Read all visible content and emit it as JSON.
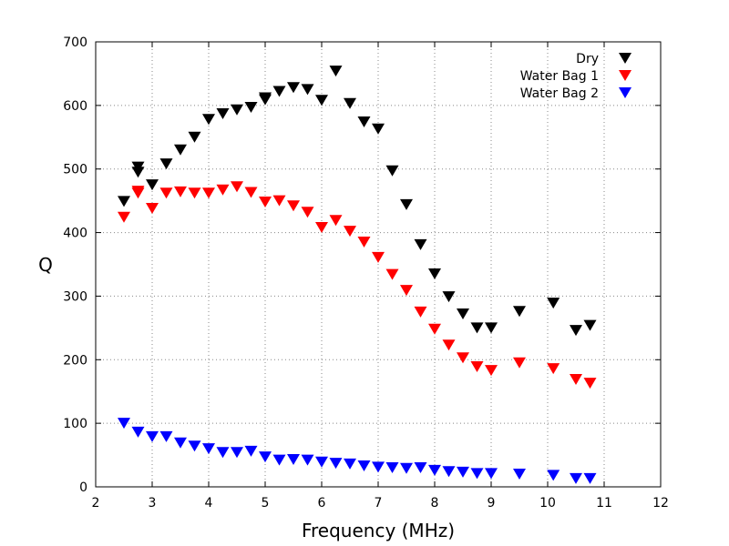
{
  "chart_data": {
    "type": "scatter",
    "title": "",
    "xlabel": "Frequency (MHz)",
    "ylabel": "Q",
    "xlim": [
      2,
      12
    ],
    "ylim": [
      0,
      700
    ],
    "xticks": [
      "2",
      "3",
      "4",
      "5",
      "6",
      "7",
      "8",
      "9",
      "10",
      "11",
      "12"
    ],
    "yticks": [
      "0",
      "100",
      "200",
      "300",
      "400",
      "500",
      "600",
      "700"
    ],
    "grid": true,
    "legend_position": "top-right",
    "marker": "down-triangle",
    "series": [
      {
        "name": "Dry",
        "color": "#000000",
        "x": [
          2.5,
          2.75,
          2.75,
          3.0,
          3.25,
          3.5,
          3.75,
          4.0,
          4.25,
          4.5,
          4.75,
          5.0,
          5.0,
          5.25,
          5.5,
          5.75,
          6.0,
          6.25,
          6.5,
          6.75,
          7.0,
          7.25,
          7.5,
          7.75,
          8.0,
          8.25,
          8.5,
          8.75,
          9.0,
          9.5,
          10.1,
          10.5,
          10.75
        ],
        "y": [
          449,
          503,
          495,
          475,
          508,
          530,
          550,
          578,
          587,
          593,
          597,
          609,
          612,
          622,
          628,
          625,
          608,
          654,
          603,
          574,
          563,
          497,
          444,
          381,
          335,
          299,
          272,
          250,
          250,
          276,
          289,
          246,
          254
        ]
      },
      {
        "name": "Water Bag 1",
        "color": "#ff0000",
        "x": [
          2.5,
          2.75,
          2.75,
          3.0,
          3.25,
          3.5,
          3.75,
          4.0,
          4.25,
          4.5,
          4.75,
          5.0,
          5.25,
          5.5,
          5.75,
          6.0,
          6.25,
          6.5,
          6.75,
          7.0,
          7.25,
          7.5,
          7.75,
          8.0,
          8.25,
          8.5,
          8.75,
          9.0,
          9.5,
          10.1,
          10.5,
          10.75
        ],
        "y": [
          424,
          465,
          462,
          438,
          462,
          464,
          462,
          462,
          467,
          472,
          463,
          448,
          450,
          442,
          432,
          408,
          419,
          402,
          385,
          361,
          334,
          309,
          275,
          248,
          223,
          203,
          189,
          183,
          195,
          186,
          169,
          163
        ]
      },
      {
        "name": "Water Bag 2",
        "color": "#0000ff",
        "x": [
          2.5,
          2.75,
          3.0,
          3.25,
          3.5,
          3.75,
          4.0,
          4.25,
          4.5,
          4.75,
          5.0,
          5.25,
          5.5,
          5.75,
          6.0,
          6.25,
          6.5,
          6.75,
          7.0,
          7.25,
          7.5,
          7.75,
          8.0,
          8.25,
          8.5,
          8.75,
          9.0,
          9.5,
          10.1,
          10.5,
          10.75
        ],
        "y": [
          100,
          86,
          79,
          79,
          69,
          64,
          60,
          54,
          54,
          56,
          47,
          42,
          43,
          42,
          39,
          37,
          36,
          33,
          31,
          30,
          29,
          30,
          26,
          24,
          23,
          21,
          21,
          20,
          18,
          13,
          13
        ]
      }
    ]
  }
}
